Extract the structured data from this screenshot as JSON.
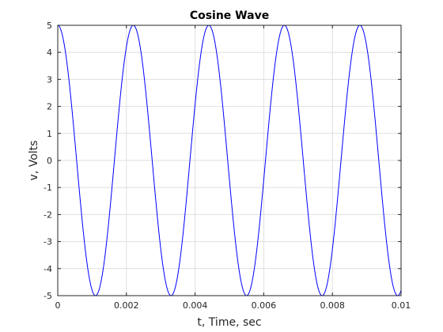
{
  "chart_data": {
    "type": "line",
    "title": "Cosine Wave",
    "xlabel": "t, Time, sec",
    "ylabel": "v, Volts",
    "xlim": [
      0,
      0.01
    ],
    "ylim": [
      -5,
      5
    ],
    "xticks": [
      0,
      0.002,
      0.004,
      0.006,
      0.008,
      0.01
    ],
    "xtick_labels": [
      "0",
      "0.002",
      "0.004",
      "0.006",
      "0.008",
      "0.01"
    ],
    "yticks": [
      -5,
      -4,
      -3,
      -2,
      -1,
      0,
      1,
      2,
      3,
      4,
      5
    ],
    "ytick_labels": [
      "-5",
      "-4",
      "-3",
      "-2",
      "-1",
      "0",
      "1",
      "2",
      "3",
      "4",
      "5"
    ],
    "grid": true,
    "series": [
      {
        "function": "cosine",
        "amplitude": 5,
        "frequency_hz": 454.5,
        "t_range": [
          0,
          0.01
        ],
        "color": "#0000ff"
      }
    ]
  }
}
